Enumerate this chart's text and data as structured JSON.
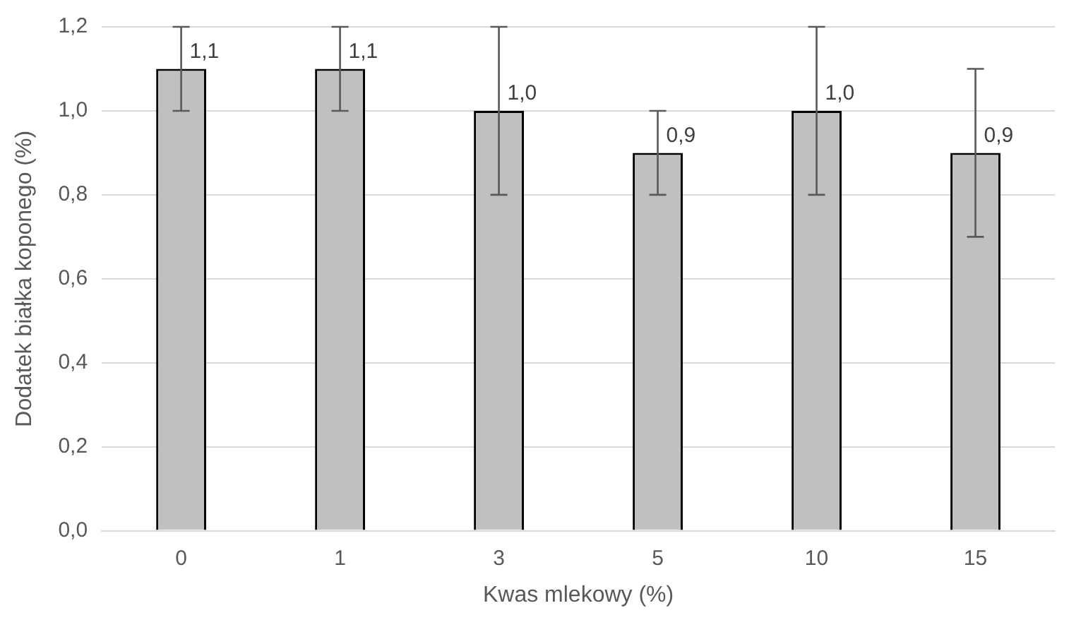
{
  "chart_data": {
    "type": "bar",
    "xlabel": "Kwas mlekowy (%)",
    "ylabel": "Dodatek białka koponego (%)",
    "categories": [
      "0",
      "1",
      "3",
      "5",
      "10",
      "15"
    ],
    "values": [
      1.1,
      1.1,
      1.0,
      0.9,
      1.0,
      0.9
    ],
    "errors": [
      0.1,
      0.1,
      0.2,
      0.1,
      0.2,
      0.2
    ],
    "value_labels": [
      "1,1",
      "1,1",
      "1,0",
      "0,9",
      "1,0",
      "0,9"
    ],
    "color": "#c0c0c0",
    "ylim": [
      0,
      1.2
    ],
    "yticks": [
      {
        "value": 0,
        "label": "0,0"
      },
      {
        "value": 0.2,
        "label": "0,2"
      },
      {
        "value": 0.4,
        "label": "0,4"
      },
      {
        "value": 0.6,
        "label": "0,6"
      },
      {
        "value": 0.8,
        "label": "0,8"
      },
      {
        "value": 1.0,
        "label": "1,0"
      },
      {
        "value": 1.2,
        "label": "1,2"
      }
    ],
    "grid": "y",
    "legend": false
  }
}
